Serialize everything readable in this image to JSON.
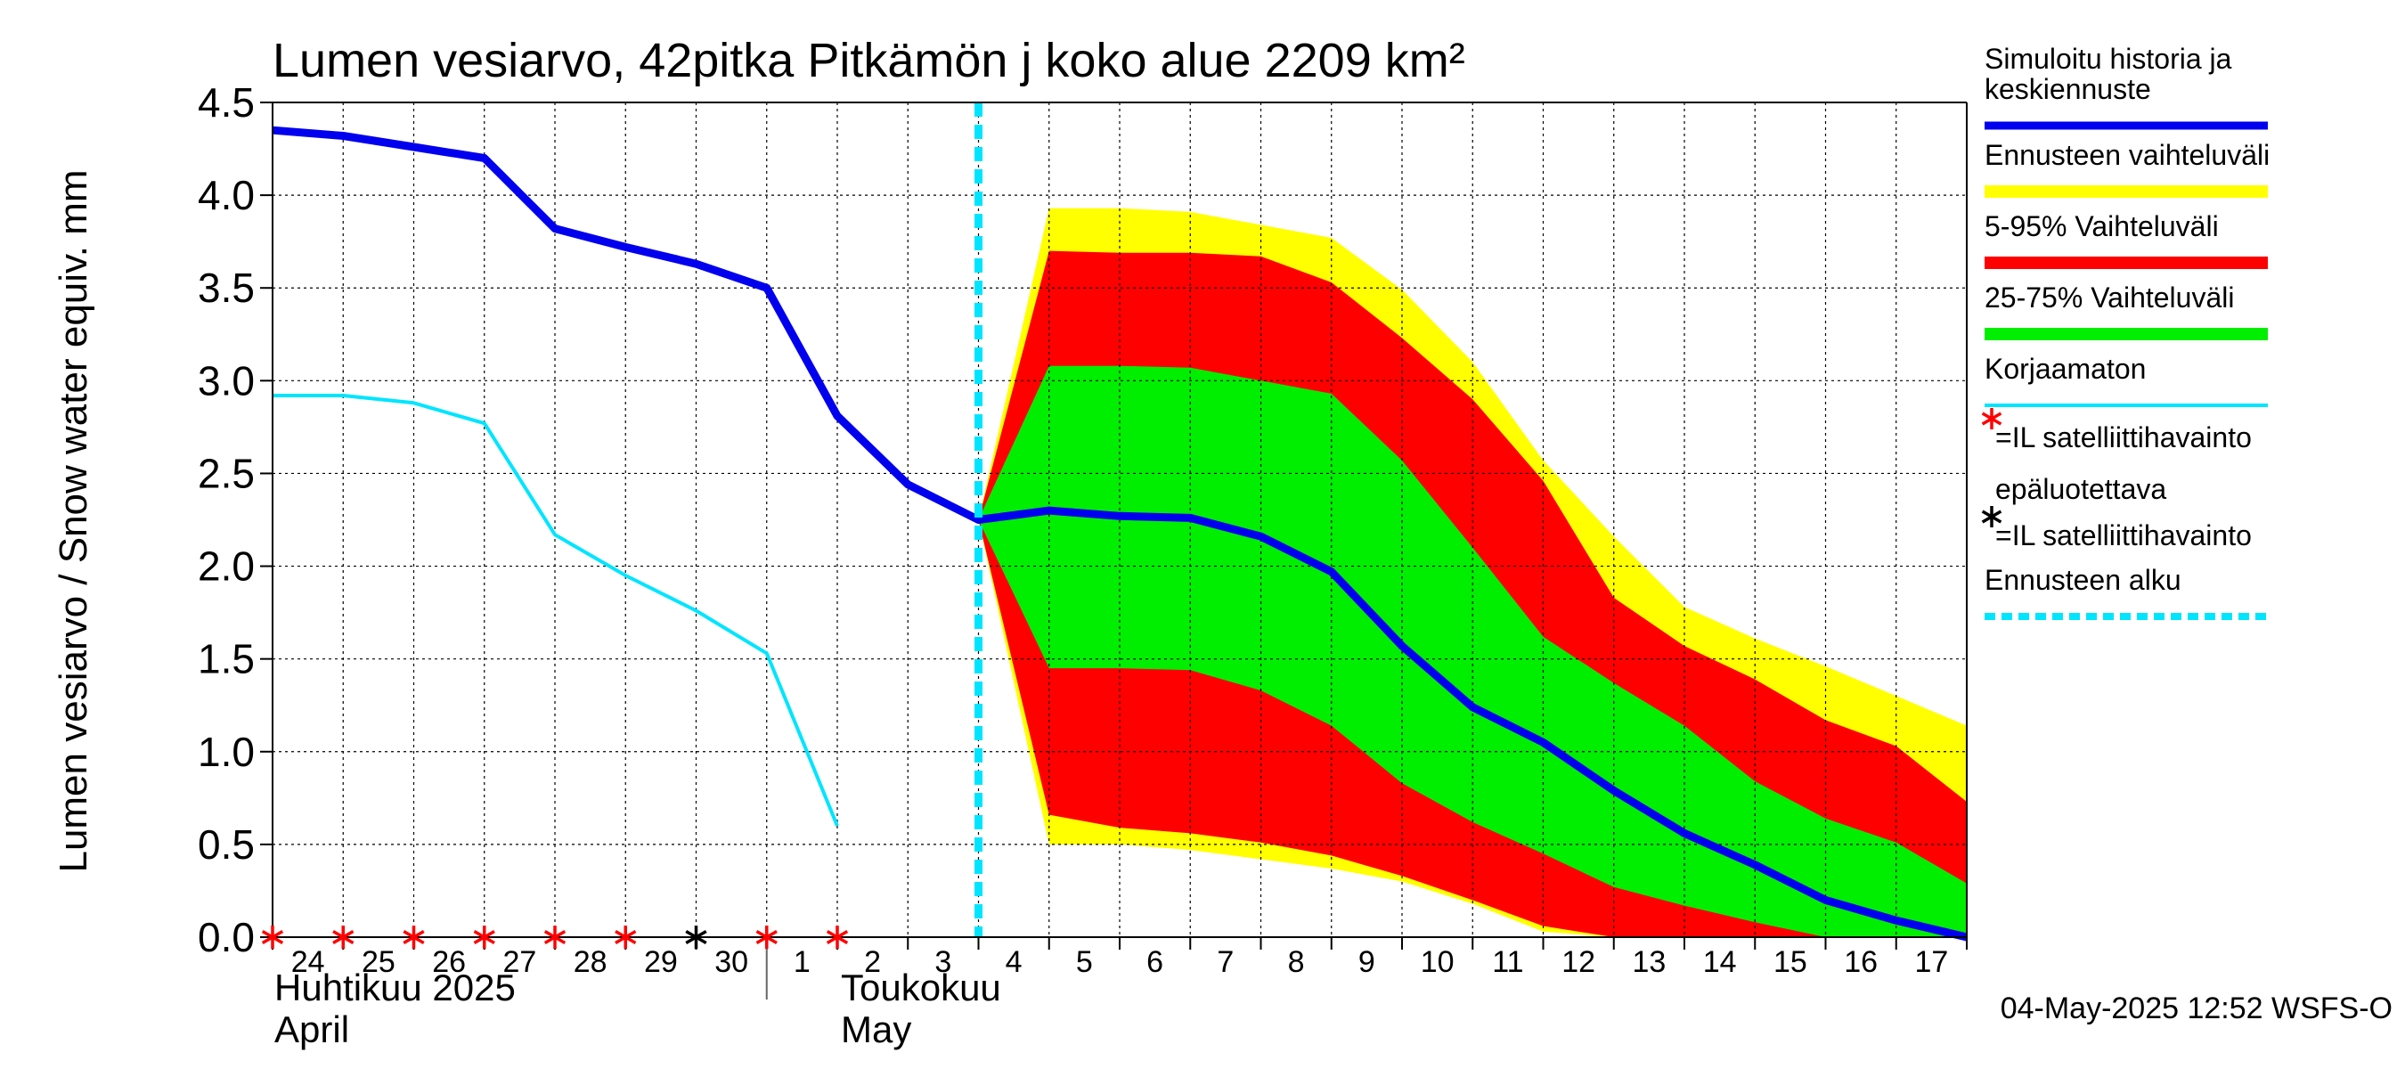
{
  "chart_data": {
    "type": "area",
    "title": "Lumen vesiarvo, 42pitka Pitkämön j koko alue 2209 km²",
    "ylabel": "Lumen vesiarvo / Snow water equiv.    mm",
    "ylim": [
      0,
      4.5
    ],
    "yticks": [
      "0.0",
      "0.5",
      "1.0",
      "1.5",
      "2.0",
      "2.5",
      "3.0",
      "3.5",
      "4.0",
      "4.5"
    ],
    "xlim": [
      "2025-04-24",
      "2025-05-18"
    ],
    "x_tick_labels": [
      "24",
      "25",
      "26",
      "27",
      "28",
      "29",
      "30",
      "1",
      "2",
      "3",
      "4",
      "5",
      "6",
      "7",
      "8",
      "9",
      "10",
      "11",
      "12",
      "13",
      "14",
      "15",
      "16",
      "17"
    ],
    "month_labels": {
      "april_fi": "Huhtikuu  2025",
      "april_en": "April",
      "may_fi": "Toukokuu",
      "may_en": "May"
    },
    "forecast_start": "2025-05-04",
    "timestamp": "04-May-2025 12:52 WSFS-O",
    "series": [
      {
        "name": "Simuloitu historia ja keskiennuste",
        "color": "#0000ee",
        "x": [
          "2025-04-24",
          "2025-04-25",
          "2025-04-26",
          "2025-04-27",
          "2025-04-28",
          "2025-04-29",
          "2025-04-30",
          "2025-05-01",
          "2025-05-02",
          "2025-05-03",
          "2025-05-04",
          "2025-05-05",
          "2025-05-06",
          "2025-05-07",
          "2025-05-08",
          "2025-05-09",
          "2025-05-10",
          "2025-05-11",
          "2025-05-12",
          "2025-05-13",
          "2025-05-14",
          "2025-05-15",
          "2025-05-16",
          "2025-05-17",
          "2025-05-18"
        ],
        "values": [
          4.35,
          4.32,
          4.26,
          4.2,
          3.82,
          3.72,
          3.63,
          3.5,
          2.81,
          2.44,
          2.25,
          2.3,
          2.27,
          2.26,
          2.16,
          1.97,
          1.57,
          1.24,
          1.05,
          0.79,
          0.56,
          0.39,
          0.2,
          0.09,
          0.0
        ]
      },
      {
        "name": "Korjaamaton",
        "color": "#00e5ff",
        "x": [
          "2025-04-24",
          "2025-04-25",
          "2025-04-26",
          "2025-04-27",
          "2025-04-28",
          "2025-04-29",
          "2025-04-30",
          "2025-05-01",
          "2025-05-02"
        ],
        "values": [
          2.92,
          2.92,
          2.88,
          2.77,
          2.17,
          1.95,
          1.76,
          1.53,
          0.6
        ]
      }
    ],
    "bands": [
      {
        "name": "Ennusteen vaihteluväli",
        "color": "#ffff00",
        "x": [
          "2025-05-04",
          "2025-05-05",
          "2025-05-06",
          "2025-05-07",
          "2025-05-08",
          "2025-05-09",
          "2025-05-10",
          "2025-05-11",
          "2025-05-12",
          "2025-05-13",
          "2025-05-14",
          "2025-05-15",
          "2025-05-16",
          "2025-05-17",
          "2025-05-18"
        ],
        "upper": [
          2.25,
          3.93,
          3.93,
          3.91,
          3.84,
          3.77,
          3.49,
          3.1,
          2.57,
          2.16,
          1.78,
          1.61,
          1.46,
          1.3,
          1.14
        ],
        "lower": [
          2.25,
          0.5,
          0.5,
          0.47,
          0.42,
          0.37,
          0.3,
          0.18,
          0.03,
          0.0,
          0.0,
          0.0,
          0.0,
          0.0,
          0.0
        ]
      },
      {
        "name": "5-95% Vaihteluväli",
        "color": "#ff0000",
        "x": [
          "2025-05-04",
          "2025-05-05",
          "2025-05-06",
          "2025-05-07",
          "2025-05-08",
          "2025-05-09",
          "2025-05-10",
          "2025-05-11",
          "2025-05-12",
          "2025-05-13",
          "2025-05-14",
          "2025-05-15",
          "2025-05-16",
          "2025-05-17",
          "2025-05-18"
        ],
        "upper": [
          2.25,
          3.7,
          3.69,
          3.69,
          3.67,
          3.53,
          3.23,
          2.9,
          2.46,
          1.83,
          1.57,
          1.39,
          1.17,
          1.03,
          0.73
        ],
        "lower": [
          2.25,
          0.66,
          0.59,
          0.56,
          0.51,
          0.44,
          0.33,
          0.2,
          0.06,
          0.0,
          0.0,
          0.0,
          0.0,
          0.0,
          0.0
        ]
      },
      {
        "name": "25-75% Vaihteluväli",
        "color": "#00ee00",
        "x": [
          "2025-05-04",
          "2025-05-05",
          "2025-05-06",
          "2025-05-07",
          "2025-05-08",
          "2025-05-09",
          "2025-05-10",
          "2025-05-11",
          "2025-05-12",
          "2025-05-13",
          "2025-05-14",
          "2025-05-15",
          "2025-05-16",
          "2025-05-17",
          "2025-05-18"
        ],
        "upper": [
          2.25,
          3.08,
          3.08,
          3.07,
          3.0,
          2.93,
          2.57,
          2.1,
          1.62,
          1.37,
          1.14,
          0.84,
          0.64,
          0.51,
          0.29
        ],
        "lower": [
          2.25,
          1.45,
          1.45,
          1.44,
          1.33,
          1.14,
          0.83,
          0.62,
          0.45,
          0.27,
          0.17,
          0.08,
          0.0,
          0.0,
          0.0
        ]
      }
    ],
    "markers": [
      {
        "name": "=IL satelliittihavainto epäluotettava",
        "color": "#ff0000",
        "x": [
          "2025-04-24",
          "2025-04-25",
          "2025-04-26",
          "2025-04-27",
          "2025-04-28",
          "2025-04-29",
          "2025-05-01",
          "2025-05-02"
        ]
      },
      {
        "name": "=IL satelliittihavainto",
        "color": "#000000",
        "x": [
          "2025-04-30"
        ]
      }
    ],
    "legend": {
      "placement": "right",
      "items": [
        {
          "label": "Simuloitu historia ja keskiennuste",
          "label_lines": [
            "Simuloitu historia ja",
            "keskiennuste"
          ],
          "type": "line",
          "color": "#0000ee"
        },
        {
          "label": "Ennusteen vaihteluväli",
          "label_lines": [
            "Ennusteen vaihteluväli"
          ],
          "type": "band",
          "color": "#ffff00"
        },
        {
          "label": "5-95% Vaihteluväli",
          "label_lines": [
            "5-95% Vaihteluväli"
          ],
          "type": "band",
          "color": "#ff0000"
        },
        {
          "label": "25-75% Vaihteluväli",
          "label_lines": [
            "25-75% Vaihteluväli"
          ],
          "type": "band",
          "color": "#00ee00"
        },
        {
          "label": "Korjaamaton",
          "label_lines": [
            "Korjaamaton"
          ],
          "type": "thinline",
          "color": "#00e5ff"
        },
        {
          "label": "=IL satelliittihavainto epäluotettava",
          "label_lines": [
            "=IL satelliittihavainto",
            "epäluotettava"
          ],
          "type": "marker",
          "color": "#ff0000"
        },
        {
          "label": "=IL satelliittihavainto",
          "label_lines": [
            "=IL satelliittihavainto"
          ],
          "type": "marker",
          "color": "#000000"
        },
        {
          "label": "Ennusteen alku",
          "label_lines": [
            "Ennusteen alku"
          ],
          "type": "dashed",
          "color": "#00e5ff"
        }
      ]
    },
    "grid": true
  }
}
